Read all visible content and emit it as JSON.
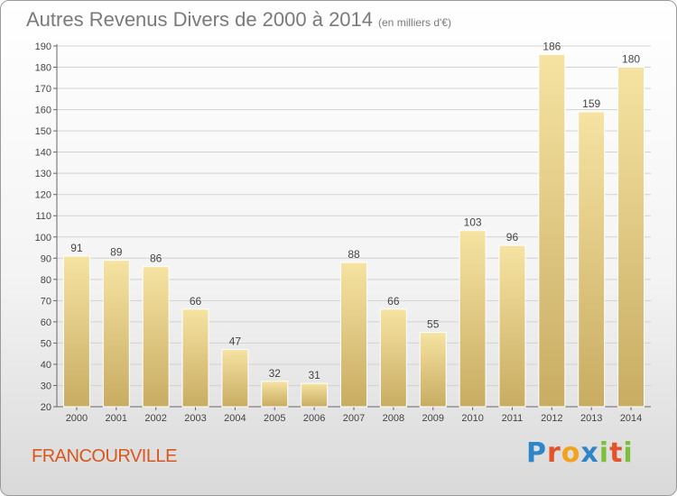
{
  "header": {
    "title": "Autres Revenus Divers de 2000 à 2014",
    "subtitle": "(en milliers d'€)"
  },
  "footer": {
    "commune": "FRANCOURVILLE",
    "logo": "Proxiti"
  },
  "colors": {
    "bar_light": "#f6e3a2",
    "bar_dark": "#c8ac62",
    "commune": "#d8571f",
    "grid": "#d2d2d2"
  },
  "chart_data": {
    "type": "bar",
    "title": "Autres Revenus Divers de 2000 à 2014",
    "subtitle": "(en milliers d'€)",
    "categories": [
      "2000",
      "2001",
      "2002",
      "2003",
      "2004",
      "2005",
      "2006",
      "2007",
      "2008",
      "2009",
      "2010",
      "2011",
      "2012",
      "2013",
      "2014"
    ],
    "values": [
      91,
      89,
      86,
      66,
      47,
      32,
      31,
      88,
      66,
      55,
      103,
      96,
      186,
      159,
      180
    ],
    "ylim": [
      20,
      190
    ],
    "yticks": [
      20,
      30,
      40,
      50,
      60,
      70,
      80,
      90,
      100,
      110,
      120,
      130,
      140,
      150,
      160,
      170,
      180,
      190
    ],
    "grid": true,
    "legend": "none"
  }
}
